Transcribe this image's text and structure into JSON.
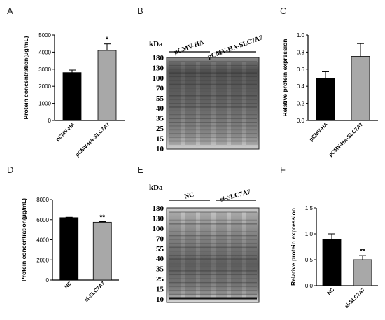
{
  "panels": {
    "A": "A",
    "B": "B",
    "C": "C",
    "D": "D",
    "E": "E",
    "F": "F"
  },
  "chart_data": [
    {
      "id": "A",
      "type": "bar",
      "categories": [
        "pCMV-HA",
        "pCMV-HA-SLC7A7"
      ],
      "values": [
        2800,
        4100
      ],
      "errors": [
        150,
        380
      ],
      "colors": [
        "#000000",
        "#a8a8a8"
      ],
      "significance": [
        "",
        "*"
      ],
      "ylabel": "Protein concentration(μg/mL)",
      "ylim": [
        0,
        5000
      ],
      "yticks": [
        "0",
        "1000",
        "2000",
        "3000",
        "4000",
        "5000"
      ]
    },
    {
      "id": "C",
      "type": "bar",
      "categories": [
        "pCMV-HA",
        "pCMV-HA-SLC7A7"
      ],
      "values": [
        0.49,
        0.75
      ],
      "errors": [
        0.08,
        0.15
      ],
      "colors": [
        "#000000",
        "#a8a8a8"
      ],
      "significance": [
        "",
        ""
      ],
      "ylabel": "Relative protein expression",
      "ylim": [
        0,
        1.0
      ],
      "yticks": [
        "0.0",
        "0.2",
        "0.4",
        "0.6",
        "0.8",
        "1.0"
      ]
    },
    {
      "id": "D",
      "type": "bar",
      "categories": [
        "NC",
        "si-SLC7A7"
      ],
      "values": [
        6200,
        5750
      ],
      "errors": [
        40,
        60
      ],
      "colors": [
        "#000000",
        "#a8a8a8"
      ],
      "significance": [
        "",
        "**"
      ],
      "ylabel": "Protein concentration(μg/mL)",
      "ylim": [
        0,
        8000
      ],
      "yticks": [
        "0",
        "2000",
        "4000",
        "6000",
        "8000"
      ]
    },
    {
      "id": "F",
      "type": "bar",
      "categories": [
        "NC",
        "si-SLC7A7"
      ],
      "values": [
        0.9,
        0.5
      ],
      "errors": [
        0.1,
        0.08
      ],
      "colors": [
        "#000000",
        "#a8a8a8"
      ],
      "significance": [
        "",
        "**"
      ],
      "ylabel": "Relative protein expression",
      "ylim": [
        0,
        1.5
      ],
      "yticks": [
        "0.0",
        "0.5",
        "1.0",
        "1.5"
      ]
    }
  ],
  "blots": [
    {
      "id": "B",
      "unit": "kDa",
      "markers": [
        "180",
        "130",
        "100",
        "70",
        "55",
        "40",
        "35",
        "25",
        "15",
        "10"
      ],
      "groups": [
        "pCMV-HA",
        "pCMV-HA-SLC7A7"
      ]
    },
    {
      "id": "E",
      "unit": "kDa",
      "markers": [
        "180",
        "130",
        "100",
        "70",
        "55",
        "40",
        "35",
        "25",
        "15",
        "10"
      ],
      "groups": [
        "NC",
        "si-SLC7A7"
      ]
    }
  ]
}
